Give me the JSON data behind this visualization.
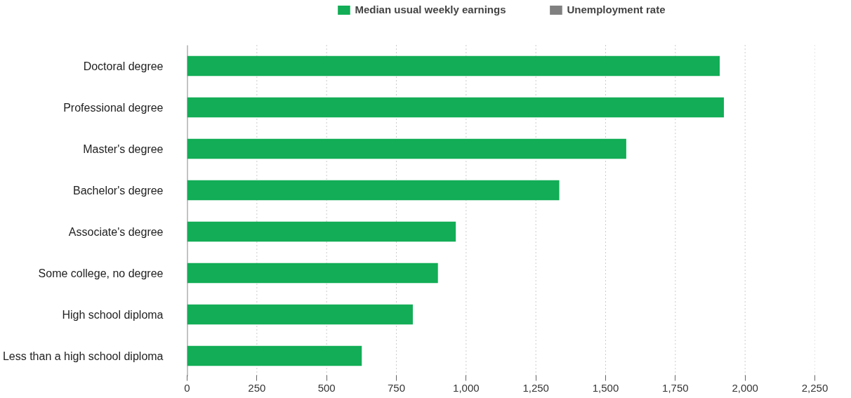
{
  "chart_data": {
    "type": "bar",
    "orientation": "horizontal",
    "categories": [
      "Doctoral degree",
      "Professional degree",
      "Master's degree",
      "Bachelor's degree",
      "Associate's degree",
      "Some college, no degree",
      "High school diploma",
      "Less than a high school diploma"
    ],
    "series": [
      {
        "name": "Median usual weekly earnings",
        "color": "#12ad56",
        "values": [
          1909,
          1924,
          1574,
          1334,
          963,
          899,
          809,
          626
        ]
      },
      {
        "name": "Unemployment rate",
        "color": "#808080",
        "values": [
          null,
          null,
          null,
          null,
          null,
          null,
          null,
          null
        ]
      }
    ],
    "xlim": [
      0,
      2250
    ],
    "xticks": [
      0,
      {
        "value": 250,
        "label": "250"
      },
      {
        "value": 500,
        "label": "500"
      },
      {
        "value": 750,
        "label": "750"
      },
      {
        "value": 1000,
        "label": "1,000"
      },
      {
        "value": 1250,
        "label": "1,250"
      },
      {
        "value": 1500,
        "label": "1,500"
      },
      {
        "value": 1750,
        "label": "1,750"
      },
      {
        "value": 2000,
        "label": "2,000"
      },
      {
        "value": 2250,
        "label": "2,250"
      }
    ],
    "grid": "x",
    "legend": "top"
  }
}
